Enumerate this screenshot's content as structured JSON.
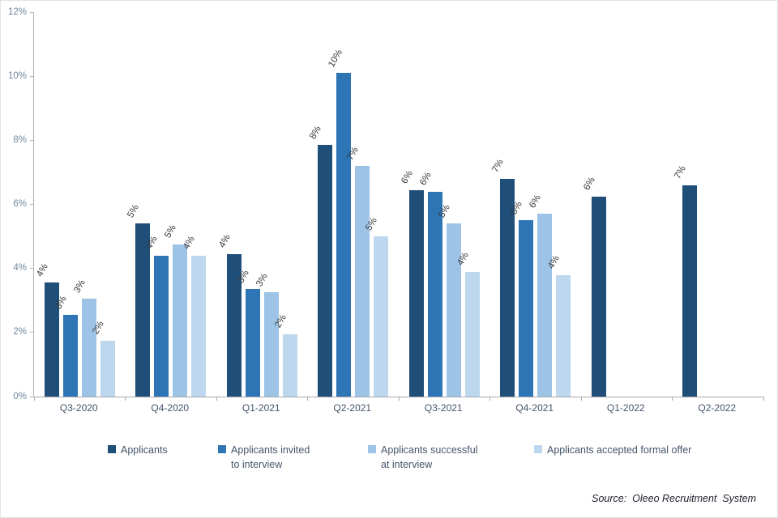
{
  "chart_data": {
    "type": "bar",
    "title": "",
    "xlabel": "",
    "ylabel": "",
    "ylim": [
      0,
      12
    ],
    "grid": false,
    "legend_position": "bottom",
    "y_ticks": [
      {
        "value": 0,
        "label": "0%"
      },
      {
        "value": 2,
        "label": "2%"
      },
      {
        "value": 4,
        "label": "4%"
      },
      {
        "value": 6,
        "label": "6%"
      },
      {
        "value": 8,
        "label": "8%"
      },
      {
        "value": 10,
        "label": "10%"
      },
      {
        "value": 12,
        "label": "12%"
      }
    ],
    "categories": [
      "Q3-2020",
      "Q4-2020",
      "Q1-2021",
      "Q2-2021",
      "Q3-2021",
      "Q4-2021",
      "Q1-2022",
      "Q2-2022"
    ],
    "series": [
      {
        "key": "applicants",
        "name": "Applicants",
        "legend_lines": [
          "Applicants"
        ],
        "color": "#1F4E79",
        "values": [
          3.55,
          5.4,
          4.45,
          7.85,
          6.45,
          6.8,
          6.25,
          6.6
        ],
        "labels": [
          "4%",
          "5%",
          "4%",
          "8%",
          "6%",
          "7%",
          "6%",
          "7%"
        ]
      },
      {
        "key": "invited",
        "name": "Applicants invited to interview",
        "legend_lines": [
          "Applicants invited",
          "to interview"
        ],
        "color": "#2E75B6",
        "values": [
          2.55,
          4.4,
          3.35,
          10.1,
          6.4,
          5.5,
          null,
          null
        ],
        "labels": [
          "3%",
          "4%",
          "3%",
          "10%",
          "6%",
          "5%",
          null,
          null
        ]
      },
      {
        "key": "successful",
        "name": "Applicants successful at interview",
        "legend_lines": [
          "Applicants successful",
          "at interview"
        ],
        "color": "#9DC3E6",
        "values": [
          3.05,
          4.75,
          3.25,
          7.2,
          5.4,
          5.7,
          null,
          null
        ],
        "labels": [
          "3%",
          "5%",
          "3%",
          "7%",
          "5%",
          "6%",
          null,
          null
        ]
      },
      {
        "key": "accepted",
        "name": "Applicants accepted formal offer",
        "legend_lines": [
          "Applicants accepted formal offer"
        ],
        "color": "#BDD7EE",
        "values": [
          1.75,
          4.4,
          1.95,
          5.0,
          3.9,
          3.8,
          null,
          null
        ],
        "labels": [
          "2%",
          "4%",
          "2%",
          "5%",
          "4%",
          "4%",
          null,
          null
        ]
      }
    ]
  },
  "source_note": "Source:  Oleeo Recruitment  System"
}
